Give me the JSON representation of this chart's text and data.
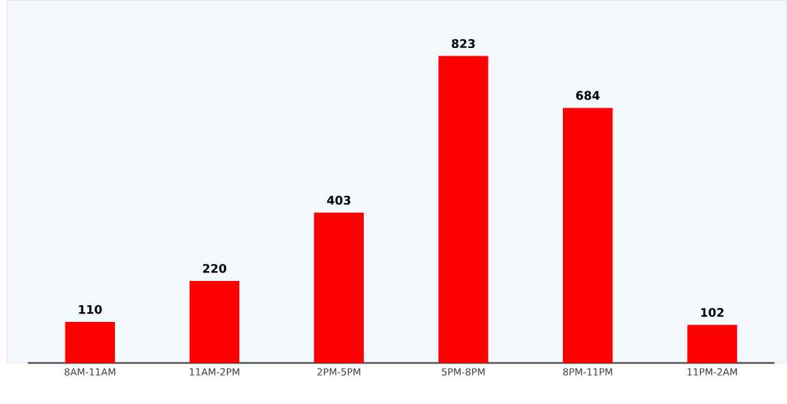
{
  "chart_data": {
    "type": "bar",
    "categories": [
      "8AM-11AM",
      "11AM-2PM",
      "2PM-5PM",
      "5PM-8PM",
      "8PM-11PM",
      "11PM-2AM"
    ],
    "values": [
      110,
      220,
      403,
      823,
      684,
      102
    ],
    "color": "#ff0000",
    "data_labels": true
  }
}
